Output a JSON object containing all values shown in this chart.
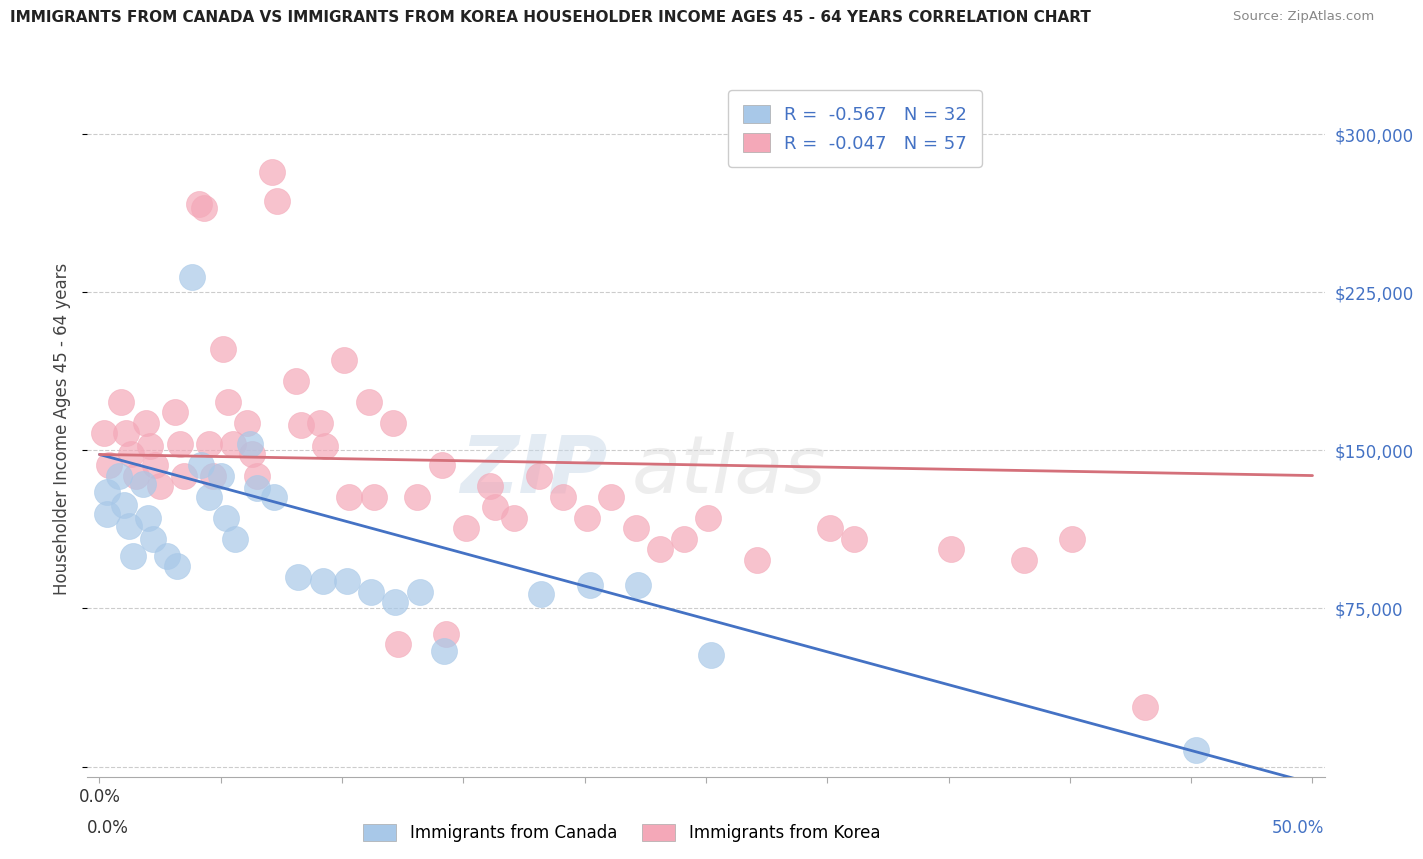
{
  "title": "IMMIGRANTS FROM CANADA VS IMMIGRANTS FROM KOREA HOUSEHOLDER INCOME AGES 45 - 64 YEARS CORRELATION CHART",
  "source": "Source: ZipAtlas.com",
  "ylabel": "Householder Income Ages 45 - 64 years",
  "yticks": [
    0,
    75000,
    150000,
    225000,
    300000
  ],
  "ytick_labels_right": [
    "",
    "$75,000",
    "$150,000",
    "$225,000",
    "$300,000"
  ],
  "xticks": [
    0.0,
    0.05,
    0.1,
    0.15,
    0.2,
    0.25,
    0.3,
    0.35,
    0.4,
    0.45,
    0.5
  ],
  "xlim": [
    -0.005,
    0.505
  ],
  "ylim": [
    -5000,
    325000
  ],
  "canada_R": -0.567,
  "canada_N": 32,
  "korea_R": -0.047,
  "korea_N": 57,
  "canada_color": "#a8c8e8",
  "korea_color": "#f4a8b8",
  "canada_line_color": "#4472c4",
  "korea_line_color": "#d4707a",
  "canada_line_x": [
    0.0,
    0.5
  ],
  "canada_line_y": [
    148000,
    -8000
  ],
  "korea_line_x": [
    0.0,
    0.5
  ],
  "korea_line_y": [
    148000,
    138000
  ],
  "watermark_zip": "ZIP",
  "watermark_atlas": "atlas",
  "canada_x": [
    0.003,
    0.003,
    0.008,
    0.01,
    0.012,
    0.014,
    0.018,
    0.02,
    0.022,
    0.028,
    0.032,
    0.038,
    0.042,
    0.045,
    0.05,
    0.052,
    0.056,
    0.062,
    0.065,
    0.072,
    0.082,
    0.092,
    0.102,
    0.112,
    0.122,
    0.132,
    0.142,
    0.182,
    0.202,
    0.222,
    0.252,
    0.452
  ],
  "canada_y": [
    130000,
    120000,
    138000,
    124000,
    114000,
    100000,
    134000,
    118000,
    108000,
    100000,
    95000,
    232000,
    143000,
    128000,
    138000,
    118000,
    108000,
    153000,
    132000,
    128000,
    90000,
    88000,
    88000,
    83000,
    78000,
    83000,
    55000,
    82000,
    86000,
    86000,
    53000,
    8000
  ],
  "korea_x": [
    0.002,
    0.004,
    0.009,
    0.011,
    0.013,
    0.015,
    0.019,
    0.021,
    0.023,
    0.025,
    0.031,
    0.033,
    0.035,
    0.041,
    0.043,
    0.045,
    0.047,
    0.051,
    0.053,
    0.055,
    0.061,
    0.063,
    0.065,
    0.071,
    0.073,
    0.081,
    0.083,
    0.091,
    0.093,
    0.101,
    0.103,
    0.111,
    0.113,
    0.121,
    0.123,
    0.131,
    0.141,
    0.143,
    0.151,
    0.161,
    0.163,
    0.171,
    0.181,
    0.191,
    0.201,
    0.211,
    0.221,
    0.231,
    0.241,
    0.251,
    0.271,
    0.301,
    0.311,
    0.351,
    0.381,
    0.401,
    0.431
  ],
  "korea_y": [
    158000,
    143000,
    173000,
    158000,
    148000,
    138000,
    163000,
    152000,
    143000,
    133000,
    168000,
    153000,
    138000,
    267000,
    265000,
    153000,
    138000,
    198000,
    173000,
    153000,
    163000,
    148000,
    138000,
    282000,
    268000,
    183000,
    162000,
    163000,
    152000,
    193000,
    128000,
    173000,
    128000,
    163000,
    58000,
    128000,
    143000,
    63000,
    113000,
    133000,
    123000,
    118000,
    138000,
    128000,
    118000,
    128000,
    113000,
    103000,
    108000,
    118000,
    98000,
    113000,
    108000,
    103000,
    98000,
    108000,
    28000
  ]
}
